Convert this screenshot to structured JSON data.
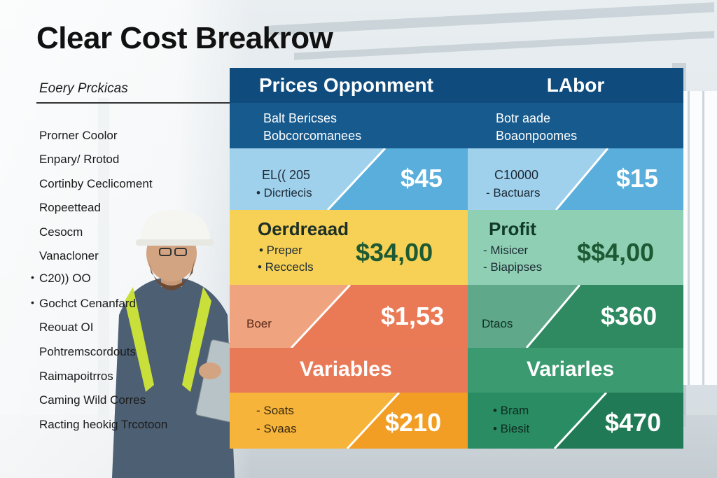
{
  "title": "Clear Cost Breakrow",
  "subtitle": "Eoery Prckicas",
  "left_list": [
    {
      "text": "Prorner Coolor",
      "bullet": false
    },
    {
      "text": "Enpary/ Rrotod",
      "bullet": false
    },
    {
      "text": "Cortinby Ceclicoment",
      "bullet": false
    },
    {
      "text": "Ropeettead",
      "bullet": false
    },
    {
      "text": "Cesocm",
      "bullet": false
    },
    {
      "text": "Vanacloner",
      "bullet": false
    },
    {
      "text": "C20)) OO",
      "bullet": true
    },
    {
      "text": "Gochct Cenanfard",
      "bullet": true
    },
    {
      "text": "Reouat OI",
      "bullet": false
    },
    {
      "text": "Pohtremscordouts",
      "bullet": false
    },
    {
      "text": "Raimapoitrros",
      "bullet": false
    },
    {
      "text": "Caming Wild Corres",
      "bullet": false
    },
    {
      "text": "Racting heokig Trcotoon",
      "bullet": false
    }
  ],
  "columns": {
    "a": {
      "header": "Prices Opponment",
      "subheader": [
        "Balt Bericses",
        "Bobcorcomanees"
      ],
      "row1": {
        "code": "EL(( 205",
        "item": "• Dicrtiecis",
        "amount": "$45"
      },
      "row2": {
        "label": "Oerdreaad",
        "items": [
          "•  Preper",
          "• Reccecls"
        ],
        "amount": "$34,00"
      },
      "row3": {
        "label": "Boer",
        "amount": "$1,53"
      },
      "row4": {
        "label": "Variables"
      },
      "row5": {
        "items": [
          "- Soats",
          "- Svaas"
        ],
        "amount": "$210"
      }
    },
    "b": {
      "header": "LAbor",
      "subheader": [
        "Botr aade",
        "Boaonpoomes"
      ],
      "row1": {
        "code": "C10000",
        "item": "- Bactuars",
        "amount": "$15"
      },
      "row2": {
        "label": "Profit",
        "items": [
          "-   Misicer",
          "- Biapipses"
        ],
        "amount": "$$4,00"
      },
      "row3": {
        "label": "Dtaos",
        "amount": "$360"
      },
      "row4": {
        "label": "Variarles"
      },
      "row5": {
        "items": [
          "• Bram",
          "• Biesit"
        ],
        "amount": "$470"
      }
    }
  },
  "colors": {
    "navy": "#0f4c7d",
    "navy2": "#165a8e",
    "sky": "#7dbfe3",
    "sky_dark": "#5aaedb",
    "yellow": "#f6d155",
    "mint": "#8fcfb3",
    "orange": "#ea7a55",
    "green": "#2f8a62",
    "gold": "#f2a92a",
    "deep_green": "#1f7a55"
  }
}
